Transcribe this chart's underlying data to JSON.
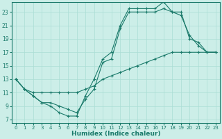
{
  "xlabel": "Humidex (Indice chaleur)",
  "bg_color": "#cceee8",
  "grid_color": "#aaddd5",
  "line_color": "#1a7a6a",
  "xlim": [
    -0.5,
    23.5
  ],
  "ylim": [
    6.5,
    24.5
  ],
  "xticks": [
    0,
    1,
    2,
    3,
    4,
    5,
    6,
    7,
    8,
    9,
    10,
    11,
    12,
    13,
    14,
    15,
    16,
    17,
    18,
    19,
    20,
    21,
    22,
    23
  ],
  "yticks": [
    7,
    9,
    11,
    13,
    15,
    17,
    19,
    21,
    23
  ],
  "line1_x": [
    0,
    1,
    2,
    3,
    4,
    5,
    6,
    7,
    8,
    9,
    10,
    11,
    12,
    13,
    14,
    15,
    16,
    17,
    18,
    19,
    20,
    21,
    22,
    23
  ],
  "line1_y": [
    13,
    11.5,
    10.5,
    9.5,
    9,
    8,
    7.5,
    7.5,
    10.5,
    13,
    16,
    17,
    21,
    23.5,
    23.5,
    23.5,
    23.5,
    24.5,
    23,
    23,
    19,
    18.5,
    17,
    17
  ],
  "line2_x": [
    0,
    1,
    2,
    3,
    4,
    5,
    6,
    7,
    8,
    9,
    10,
    11,
    12,
    13,
    14,
    15,
    16,
    17,
    18,
    19,
    20,
    21,
    22,
    23
  ],
  "line2_y": [
    13,
    11.5,
    10.5,
    9.5,
    9.5,
    9,
    8.5,
    8,
    10,
    11.5,
    15.5,
    16,
    20.5,
    23,
    23,
    23,
    23,
    23.5,
    23,
    22.5,
    19.5,
    18,
    17,
    17
  ],
  "line3_x": [
    0,
    1,
    2,
    3,
    4,
    5,
    6,
    7,
    8,
    9,
    10,
    11,
    12,
    13,
    14,
    15,
    16,
    17,
    18,
    19,
    20,
    21,
    22,
    23
  ],
  "line3_y": [
    13,
    11.5,
    11,
    11,
    11,
    11,
    11,
    11,
    11.5,
    12,
    13,
    13.5,
    14,
    14.5,
    15,
    15.5,
    16,
    16.5,
    17,
    17,
    17,
    17,
    17,
    17
  ]
}
